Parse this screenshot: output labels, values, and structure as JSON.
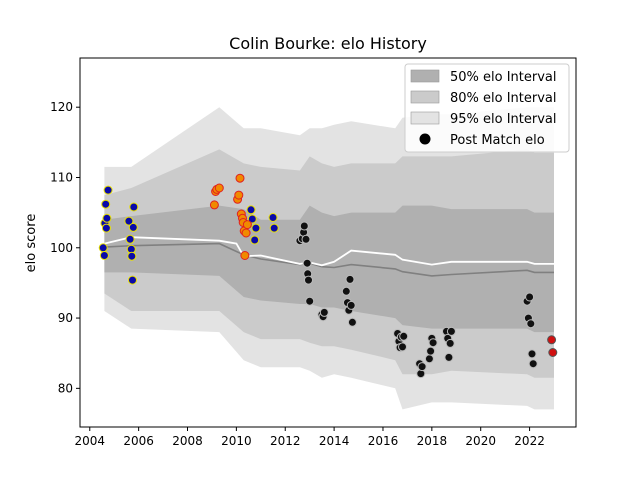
{
  "chart_data": {
    "type": "scatter",
    "title": "Colin Bourke: elo History",
    "xlabel": "",
    "ylabel": "elo score",
    "xlim": [
      2003.6,
      2023.9
    ],
    "ylim": [
      74.5,
      127
    ],
    "xticks": [
      2004,
      2006,
      2008,
      2010,
      2012,
      2014,
      2016,
      2018,
      2020,
      2022
    ],
    "yticks": [
      80,
      90,
      100,
      110,
      120
    ],
    "grid": false,
    "legend_position": "top-right",
    "legend": [
      {
        "key": "band50",
        "label": "50% elo Interval"
      },
      {
        "key": "band80",
        "label": "80% elo Interval"
      },
      {
        "key": "band95",
        "label": "95% elo Interval"
      },
      {
        "key": "points",
        "label": "Post Match elo"
      }
    ],
    "colors": {
      "band50": "#b0b0b0",
      "band80": "#cbcbcb",
      "band95": "#e3e3e3",
      "median_line": "#808080",
      "mean_line": "#ffffff",
      "point_fill_blue": "#0a0aa8",
      "point_edge_yellow": "#e8e000",
      "point_fill_orange": "#f08a00",
      "point_edge_red": "#e02020",
      "point_fill_black": "#111111",
      "point_edge_gray": "#bbbbbb",
      "point_fill_red": "#d01010",
      "point_edge_dark": "#555555"
    },
    "bands": {
      "x": [
        2004.6,
        2005.7,
        2009.3,
        2010.3,
        2011.0,
        2012.6,
        2013.0,
        2013.5,
        2014.0,
        2014.7,
        2016.5,
        2016.8,
        2018.0,
        2018.8,
        2021.9,
        2022.2,
        2023.0
      ],
      "p95_hi": [
        111.5,
        111.5,
        120,
        117,
        117,
        116,
        117,
        117,
        117.5,
        118,
        117,
        118.5,
        119,
        119,
        120,
        120,
        120
      ],
      "p80_hi": [
        107.5,
        108.5,
        114,
        112,
        111.5,
        111,
        113,
        112,
        111.5,
        112,
        112,
        113,
        113,
        113,
        114,
        113.5,
        113.5
      ],
      "p50_hi": [
        104,
        104.5,
        106,
        105.5,
        104,
        104,
        106,
        105,
        104.5,
        105,
        105,
        106,
        106,
        105.5,
        105.5,
        105,
        105
      ],
      "p50_lo": [
        96.5,
        96.5,
        96,
        93,
        92.5,
        92,
        92,
        91.5,
        91.5,
        91,
        90,
        89,
        88.5,
        88.5,
        88.5,
        88,
        88
      ],
      "p80_lo": [
        93.5,
        91,
        91,
        88,
        87,
        87,
        86.5,
        86,
        86,
        85.5,
        84,
        82,
        82,
        82.5,
        82,
        81.5,
        81.5
      ],
      "p95_lo": [
        91,
        88.5,
        88,
        84,
        83,
        83,
        82.5,
        81.5,
        82,
        81.5,
        80,
        77,
        78,
        78,
        77.5,
        77,
        77
      ]
    },
    "median_line": {
      "x": [
        2004.6,
        2005.7,
        2009.3,
        2010.3,
        2011.0,
        2012.6,
        2013.0,
        2013.5,
        2014.0,
        2014.7,
        2016.5,
        2016.8,
        2018.0,
        2018.8,
        2021.9,
        2022.2,
        2023.0
      ],
      "y": [
        100.1,
        100.3,
        100.6,
        99,
        98.4,
        97.6,
        97.8,
        97.3,
        97.2,
        97.6,
        97,
        96.6,
        96,
        96.2,
        96.8,
        96.5,
        96.5
      ]
    },
    "mean_line": {
      "x": [
        2004.6,
        2005.7,
        2009.3,
        2010.0,
        2010.3,
        2011.0,
        2012.6,
        2013.0,
        2013.5,
        2014.0,
        2014.7,
        2016.5,
        2016.8,
        2018.0,
        2018.8,
        2021.9,
        2022.2,
        2023.0
      ],
      "y": [
        100.6,
        101.5,
        101,
        100.6,
        98.8,
        98.9,
        97.7,
        97.9,
        97.5,
        98,
        99.6,
        99,
        98.3,
        97.6,
        98,
        98,
        97.7,
        97.7
      ]
    },
    "series": [
      {
        "style": "blue",
        "points": [
          [
            2004.55,
            100
          ],
          [
            2004.6,
            98.9
          ],
          [
            2004.62,
            103.5
          ],
          [
            2004.65,
            106.2
          ],
          [
            2004.68,
            102.8
          ],
          [
            2004.7,
            104.2
          ],
          [
            2004.75,
            108.2
          ],
          [
            2005.6,
            103.8
          ],
          [
            2005.65,
            101.2
          ],
          [
            2005.7,
            99.8
          ],
          [
            2005.72,
            98.8
          ],
          [
            2005.75,
            95.4
          ],
          [
            2005.78,
            102.9
          ],
          [
            2005.8,
            105.8
          ],
          [
            2010.6,
            105.4
          ],
          [
            2010.65,
            104.1
          ],
          [
            2010.75,
            101.1
          ],
          [
            2010.8,
            102.8
          ],
          [
            2011.5,
            104.3
          ],
          [
            2011.55,
            102.8
          ]
        ]
      },
      {
        "style": "orange",
        "points": [
          [
            2009.1,
            106.1
          ],
          [
            2009.15,
            108
          ],
          [
            2009.2,
            108.3
          ],
          [
            2009.3,
            108.5
          ],
          [
            2010.05,
            106.9
          ],
          [
            2010.1,
            107.5
          ],
          [
            2010.15,
            109.9
          ],
          [
            2010.2,
            104.8
          ],
          [
            2010.25,
            104.2
          ],
          [
            2010.28,
            103.6
          ],
          [
            2010.32,
            102.4
          ],
          [
            2010.35,
            98.9
          ],
          [
            2010.4,
            102.1
          ],
          [
            2010.45,
            103.3
          ]
        ]
      },
      {
        "style": "black",
        "points": [
          [
            2012.6,
            101
          ],
          [
            2012.7,
            101.3
          ],
          [
            2012.75,
            102.2
          ],
          [
            2012.78,
            103.1
          ],
          [
            2012.85,
            101.2
          ],
          [
            2012.9,
            97.8
          ],
          [
            2012.92,
            96.3
          ],
          [
            2012.95,
            95.4
          ],
          [
            2013.0,
            92.4
          ],
          [
            2013.5,
            90.5
          ],
          [
            2013.55,
            90.2
          ],
          [
            2013.6,
            90.8
          ],
          [
            2014.5,
            93.8
          ],
          [
            2014.55,
            92.2
          ],
          [
            2014.6,
            91.1
          ],
          [
            2014.65,
            95.5
          ],
          [
            2014.7,
            91.8
          ],
          [
            2014.75,
            89.4
          ],
          [
            2016.6,
            87.8
          ],
          [
            2016.65,
            86.7
          ],
          [
            2016.7,
            85.8
          ],
          [
            2016.75,
            87.3
          ],
          [
            2016.8,
            85.9
          ],
          [
            2016.85,
            87.4
          ],
          [
            2017.5,
            83.5
          ],
          [
            2017.55,
            82.1
          ],
          [
            2017.6,
            83.1
          ],
          [
            2017.9,
            84.2
          ],
          [
            2017.95,
            85.3
          ],
          [
            2018.0,
            87.1
          ],
          [
            2018.05,
            86.5
          ],
          [
            2018.6,
            88.1
          ],
          [
            2018.65,
            87.1
          ],
          [
            2018.7,
            84.4
          ],
          [
            2018.75,
            86.4
          ],
          [
            2018.8,
            88.1
          ],
          [
            2021.9,
            92.4
          ],
          [
            2021.95,
            90
          ],
          [
            2022.0,
            93
          ],
          [
            2022.05,
            89.2
          ],
          [
            2022.1,
            84.9
          ],
          [
            2022.15,
            83.5
          ]
        ]
      },
      {
        "style": "red",
        "points": [
          [
            2022.9,
            86.9
          ],
          [
            2022.95,
            85.1
          ]
        ]
      }
    ]
  }
}
